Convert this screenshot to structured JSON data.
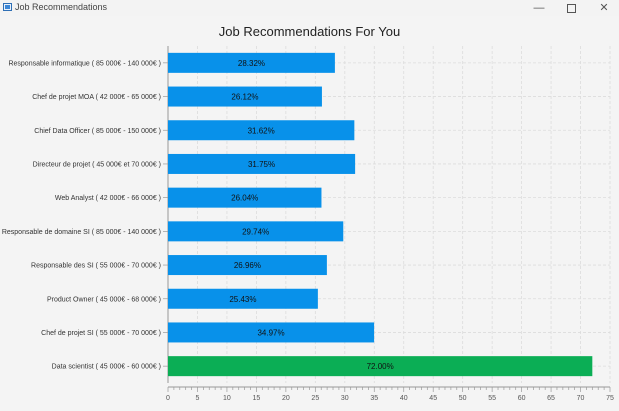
{
  "window": {
    "title": "Job Recommendations",
    "controls": [
      "minimize-icon",
      "maximize-icon",
      "close-icon"
    ]
  },
  "colors": {
    "bar_default": "#0891ea",
    "bar_highlight": "#0bae55",
    "grid": "#dcdcdc"
  },
  "chart_data": {
    "type": "bar",
    "orientation": "horizontal",
    "title": "Job Recommendations For You",
    "xlabel": "",
    "ylabel": "",
    "xlim": [
      0,
      75
    ],
    "xticks": [
      0,
      5,
      10,
      15,
      20,
      25,
      30,
      35,
      40,
      45,
      50,
      55,
      60,
      65,
      70,
      75
    ],
    "grid": true,
    "categories": [
      "Responsable informatique ( 85 000€ - 140 000€ )",
      "Chef de projet MOA ( 42 000€ - 65 000€ )",
      "Chief Data Officer ( 85 000€ - 150 000€ )",
      "Directeur de projet ( 45 000€ et 70 000€ )",
      "Web Analyst ( 42 000€ - 66 000€ )",
      "Responsable de domaine SI ( 85 000€ - 140 000€ )",
      "Responsable des SI ( 55 000€ - 70 000€ )",
      "Product Owner ( 45 000€ - 68 000€ )",
      "Chef de projet SI ( 55 000€ - 70 000€ )",
      "Data scientist ( 45 000€ - 60 000€ )"
    ],
    "values": [
      28.32,
      26.12,
      31.62,
      31.75,
      26.04,
      29.74,
      26.96,
      25.43,
      34.97,
      72.0
    ],
    "value_labels": [
      "28.32%",
      "26.12%",
      "31.62%",
      "31.75%",
      "26.04%",
      "29.74%",
      "26.96%",
      "25.43%",
      "34.97%",
      "72.00%"
    ],
    "highlight_index": 9
  }
}
